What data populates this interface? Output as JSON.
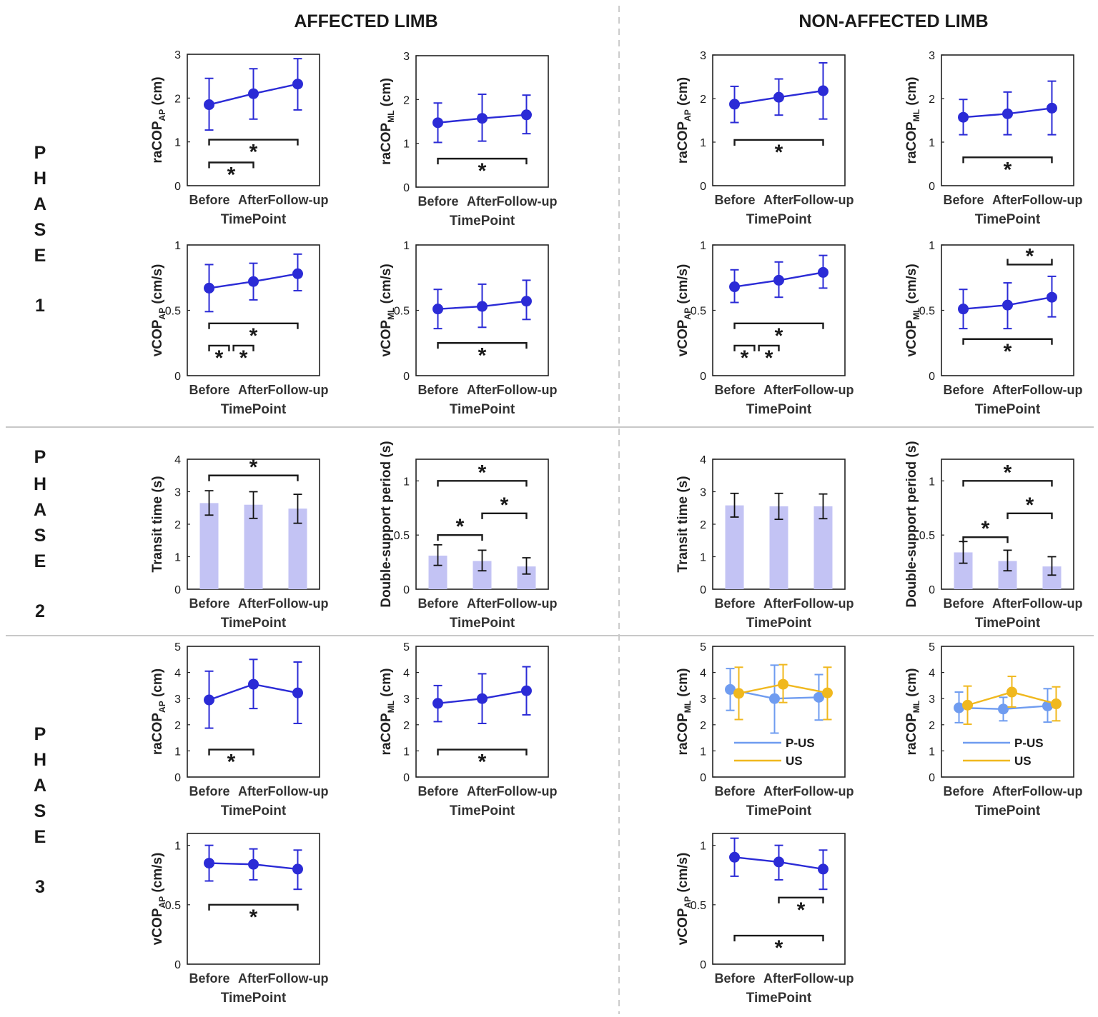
{
  "headers": {
    "affected": "AFFECTED LIMB",
    "non_affected": "NON-AFFECTED LIMB"
  },
  "phases": [
    {
      "word": [
        "P",
        "H",
        "A",
        "S",
        "E"
      ],
      "number": "1"
    },
    {
      "word": [
        "P",
        "H",
        "A",
        "S",
        "E"
      ],
      "number": "2"
    },
    {
      "word": [
        "P",
        "H",
        "A",
        "S",
        "E"
      ],
      "number": "3"
    }
  ],
  "colors": {
    "series": "#2b2bd6",
    "bar": "#c3c3f4",
    "p_us": "#6f9cf0",
    "us": "#f0b81e",
    "sig": "#1a1a1a",
    "divider": "#bbbbbb"
  },
  "chart_data": [
    {
      "id": "p1-aff-raap",
      "type": "line",
      "title": "",
      "ylabel": "raCOP",
      "ylabel_sub": "AP",
      "ylabel_unit": "(cm)",
      "xlabel": "TimePoint",
      "categories": [
        "Before",
        "After",
        "Follow-up"
      ],
      "ylim": [
        0,
        3
      ],
      "yticks": [
        "0",
        "1",
        "2",
        "3"
      ],
      "series": [
        {
          "name": "",
          "color": "series",
          "values": [
            1.85,
            2.1,
            2.32
          ],
          "err_low": [
            1.27,
            1.52,
            1.73
          ],
          "err_high": [
            2.45,
            2.67,
            2.9
          ]
        }
      ],
      "sig": [
        {
          "from": 0,
          "to": 2,
          "level": 1.05,
          "label": "*",
          "dir": "down",
          "star": "below"
        },
        {
          "from": 0,
          "to": 1,
          "level": 0.53,
          "label": "*",
          "dir": "down",
          "star": "below"
        }
      ]
    },
    {
      "id": "p1-aff-raml",
      "type": "line",
      "title": "",
      "ylabel": "raCOP",
      "ylabel_sub": "ML",
      "ylabel_unit": "(cm)",
      "xlabel": "TimePoint",
      "categories": [
        "Before",
        "After",
        "Follow-up"
      ],
      "ylim": [
        0,
        3
      ],
      "yticks": [
        "0",
        "1",
        "2",
        "3"
      ],
      "series": [
        {
          "name": "",
          "color": "series",
          "values": [
            1.47,
            1.57,
            1.65
          ],
          "err_low": [
            1.02,
            1.05,
            1.22
          ],
          "err_high": [
            1.92,
            2.12,
            2.1
          ]
        }
      ],
      "sig": [
        {
          "from": 0,
          "to": 2,
          "level": 0.65,
          "label": "*",
          "dir": "down",
          "star": "below"
        }
      ]
    },
    {
      "id": "p1-non-raap",
      "type": "line",
      "title": "",
      "ylabel": "raCOP",
      "ylabel_sub": "AP",
      "ylabel_unit": "(cm)",
      "xlabel": "TimePoint",
      "categories": [
        "Before",
        "After",
        "Follow-up"
      ],
      "ylim": [
        0,
        3
      ],
      "yticks": [
        "0",
        "1",
        "2",
        "3"
      ],
      "series": [
        {
          "name": "",
          "color": "series",
          "values": [
            1.87,
            2.03,
            2.18
          ],
          "err_low": [
            1.45,
            1.62,
            1.53
          ],
          "err_high": [
            2.28,
            2.45,
            2.82
          ]
        }
      ],
      "sig": [
        {
          "from": 0,
          "to": 2,
          "level": 1.05,
          "label": "*",
          "dir": "down",
          "star": "below"
        }
      ]
    },
    {
      "id": "p1-non-raml",
      "type": "line",
      "title": "",
      "ylabel": "raCOP",
      "ylabel_sub": "ML",
      "ylabel_unit": "(cm)",
      "xlabel": "TimePoint",
      "categories": [
        "Before",
        "After",
        "Follow-up"
      ],
      "ylim": [
        0,
        3
      ],
      "yticks": [
        "0",
        "1",
        "2",
        "3"
      ],
      "series": [
        {
          "name": "",
          "color": "series",
          "values": [
            1.57,
            1.65,
            1.78
          ],
          "err_low": [
            1.17,
            1.17,
            1.17
          ],
          "err_high": [
            1.98,
            2.15,
            2.4
          ]
        }
      ],
      "sig": [
        {
          "from": 0,
          "to": 2,
          "level": 0.65,
          "label": "*",
          "dir": "down",
          "star": "below"
        }
      ]
    },
    {
      "id": "p1-aff-vap",
      "type": "line",
      "title": "",
      "ylabel": "vCOP",
      "ylabel_sub": "AP",
      "ylabel_unit": "(cm/s)",
      "xlabel": "TimePoint",
      "categories": [
        "Before",
        "After",
        "Follow-up"
      ],
      "ylim": [
        0,
        1
      ],
      "yticks": [
        "0",
        "0.5",
        "1"
      ],
      "series": [
        {
          "name": "",
          "color": "series",
          "values": [
            0.67,
            0.72,
            0.78
          ],
          "err_low": [
            0.49,
            0.58,
            0.65
          ],
          "err_high": [
            0.85,
            0.86,
            0.93
          ]
        }
      ],
      "sig": [
        {
          "from": 0,
          "to": 2,
          "level": 0.4,
          "label": "*",
          "dir": "down",
          "star": "below"
        },
        {
          "from": 0,
          "to": 0.45,
          "level": 0.23,
          "label": "*",
          "dir": "down",
          "star": "below"
        },
        {
          "from": 0.55,
          "to": 1,
          "level": 0.23,
          "label": "*",
          "dir": "down",
          "star": "below"
        }
      ]
    },
    {
      "id": "p1-aff-vml",
      "type": "line",
      "title": "",
      "ylabel": "vCOP",
      "ylabel_sub": "ML",
      "ylabel_unit": "(cm/s)",
      "xlabel": "TimePoint",
      "categories": [
        "Before",
        "After",
        "Follow-up"
      ],
      "ylim": [
        0,
        1
      ],
      "yticks": [
        "0",
        "0.5",
        "1"
      ],
      "series": [
        {
          "name": "",
          "color": "series",
          "values": [
            0.51,
            0.53,
            0.57
          ],
          "err_low": [
            0.36,
            0.37,
            0.43
          ],
          "err_high": [
            0.66,
            0.7,
            0.73
          ]
        }
      ],
      "sig": [
        {
          "from": 0,
          "to": 2,
          "level": 0.25,
          "label": "*",
          "dir": "down",
          "star": "below"
        }
      ]
    },
    {
      "id": "p1-non-vap",
      "type": "line",
      "title": "",
      "ylabel": "vCOP",
      "ylabel_sub": "AP",
      "ylabel_unit": "(cm/s)",
      "xlabel": "TimePoint",
      "categories": [
        "Before",
        "After",
        "Follow-up"
      ],
      "ylim": [
        0,
        1
      ],
      "yticks": [
        "0",
        "0.5",
        "1"
      ],
      "series": [
        {
          "name": "",
          "color": "series",
          "values": [
            0.68,
            0.73,
            0.79
          ],
          "err_low": [
            0.56,
            0.6,
            0.67
          ],
          "err_high": [
            0.81,
            0.87,
            0.92
          ]
        }
      ],
      "sig": [
        {
          "from": 0,
          "to": 2,
          "level": 0.4,
          "label": "*",
          "dir": "down",
          "star": "below"
        },
        {
          "from": 0,
          "to": 0.45,
          "level": 0.23,
          "label": "*",
          "dir": "down",
          "star": "below"
        },
        {
          "from": 0.55,
          "to": 1,
          "level": 0.23,
          "label": "*",
          "dir": "down",
          "star": "below"
        }
      ]
    },
    {
      "id": "p1-non-vml",
      "type": "line",
      "title": "",
      "ylabel": "vCOP",
      "ylabel_sub": "ML",
      "ylabel_unit": "(cm/s)",
      "xlabel": "TimePoint",
      "categories": [
        "Before",
        "After",
        "Follow-up"
      ],
      "ylim": [
        0,
        1
      ],
      "yticks": [
        "0",
        "0.5",
        "1"
      ],
      "series": [
        {
          "name": "",
          "color": "series",
          "values": [
            0.51,
            0.54,
            0.6
          ],
          "err_low": [
            0.36,
            0.36,
            0.45
          ],
          "err_high": [
            0.66,
            0.71,
            0.76
          ]
        }
      ],
      "sig": [
        {
          "from": 1,
          "to": 2,
          "level": 0.85,
          "label": "*",
          "dir": "up",
          "star": "above"
        },
        {
          "from": 0,
          "to": 2,
          "level": 0.28,
          "label": "*",
          "dir": "down",
          "star": "below"
        }
      ]
    },
    {
      "id": "p2-aff-transit",
      "type": "bar",
      "title": "",
      "ylabel": "Transit time (s)",
      "ylabel_sub": "",
      "ylabel_unit": "",
      "xlabel": "TimePoint",
      "categories": [
        "Before",
        "After",
        "Follow-up"
      ],
      "ylim": [
        0,
        4
      ],
      "yticks": [
        "0",
        "1",
        "2",
        "3",
        "4"
      ],
      "series": [
        {
          "name": "",
          "color": "bar",
          "values": [
            2.65,
            2.6,
            2.48
          ],
          "err_low": [
            2.28,
            2.18,
            2.03
          ],
          "err_high": [
            3.03,
            3.0,
            2.92
          ]
        }
      ],
      "sig": [
        {
          "from": 0,
          "to": 2,
          "level": 3.5,
          "label": "*",
          "dir": "down",
          "star": "above"
        }
      ]
    },
    {
      "id": "p2-aff-dsp",
      "type": "bar",
      "title": "",
      "ylabel": "Double-support period (s)",
      "ylabel_sub": "",
      "ylabel_unit": "",
      "xlabel": "TimePoint",
      "categories": [
        "Before",
        "After",
        "Follow-up"
      ],
      "ylim": [
        0,
        1.2
      ],
      "yticks": [
        "0",
        "0.5",
        "1"
      ],
      "series": [
        {
          "name": "",
          "color": "bar",
          "values": [
            0.31,
            0.26,
            0.21
          ],
          "err_low": [
            0.22,
            0.17,
            0.14
          ],
          "err_high": [
            0.41,
            0.36,
            0.29
          ]
        }
      ],
      "sig": [
        {
          "from": 0,
          "to": 1,
          "level": 0.5,
          "label": "*",
          "dir": "down",
          "star": "above"
        },
        {
          "from": 1,
          "to": 2,
          "level": 0.7,
          "label": "*",
          "dir": "down",
          "star": "above"
        },
        {
          "from": 0,
          "to": 2,
          "level": 1.0,
          "label": "*",
          "dir": "down",
          "star": "above"
        }
      ]
    },
    {
      "id": "p2-non-transit",
      "type": "bar",
      "title": "",
      "ylabel": "Transit time (s)",
      "ylabel_sub": "",
      "ylabel_unit": "",
      "xlabel": "TimePoint",
      "categories": [
        "Before",
        "After",
        "Follow-up"
      ],
      "ylim": [
        0,
        4
      ],
      "yticks": [
        "0",
        "1",
        "2",
        "3",
        "4"
      ],
      "series": [
        {
          "name": "",
          "color": "bar",
          "values": [
            2.58,
            2.55,
            2.55
          ],
          "err_low": [
            2.22,
            2.15,
            2.17
          ],
          "err_high": [
            2.95,
            2.95,
            2.93
          ]
        }
      ],
      "sig": []
    },
    {
      "id": "p2-non-dsp",
      "type": "bar",
      "title": "",
      "ylabel": "Double-support period (s)",
      "ylabel_sub": "",
      "ylabel_unit": "",
      "xlabel": "TimePoint",
      "categories": [
        "Before",
        "After",
        "Follow-up"
      ],
      "ylim": [
        0,
        1.2
      ],
      "yticks": [
        "0",
        "0.5",
        "1"
      ],
      "series": [
        {
          "name": "",
          "color": "bar",
          "values": [
            0.34,
            0.26,
            0.21
          ],
          "err_low": [
            0.24,
            0.17,
            0.13
          ],
          "err_high": [
            0.44,
            0.36,
            0.3
          ]
        }
      ],
      "sig": [
        {
          "from": 0,
          "to": 1,
          "level": 0.48,
          "label": "*",
          "dir": "down",
          "star": "above"
        },
        {
          "from": 1,
          "to": 2,
          "level": 0.7,
          "label": "*",
          "dir": "down",
          "star": "above"
        },
        {
          "from": 0,
          "to": 2,
          "level": 1.0,
          "label": "*",
          "dir": "down",
          "star": "above"
        }
      ]
    },
    {
      "id": "p3-aff-raap",
      "type": "line",
      "title": "",
      "ylabel": "raCOP",
      "ylabel_sub": "AP",
      "ylabel_unit": "(cm)",
      "xlabel": "TimePoint",
      "categories": [
        "Before",
        "After",
        "Follow-up"
      ],
      "ylim": [
        0,
        5
      ],
      "yticks": [
        "0",
        "1",
        "2",
        "3",
        "4",
        "5"
      ],
      "series": [
        {
          "name": "",
          "color": "series",
          "values": [
            2.95,
            3.55,
            3.22
          ],
          "err_low": [
            1.87,
            2.62,
            2.05
          ],
          "err_high": [
            4.05,
            4.5,
            4.4
          ]
        }
      ],
      "sig": [
        {
          "from": 0,
          "to": 1,
          "level": 1.05,
          "label": "*",
          "dir": "down",
          "star": "below"
        }
      ]
    },
    {
      "id": "p3-aff-raml",
      "type": "line",
      "title": "",
      "ylabel": "raCOP",
      "ylabel_sub": "ML",
      "ylabel_unit": "(cm)",
      "xlabel": "TimePoint",
      "categories": [
        "Before",
        "After",
        "Follow-up"
      ],
      "ylim": [
        0,
        5
      ],
      "yticks": [
        "0",
        "1",
        "2",
        "3",
        "4",
        "5"
      ],
      "series": [
        {
          "name": "",
          "color": "series",
          "values": [
            2.82,
            3.0,
            3.3
          ],
          "err_low": [
            2.12,
            2.05,
            2.38
          ],
          "err_high": [
            3.5,
            3.95,
            4.22
          ]
        }
      ],
      "sig": [
        {
          "from": 0,
          "to": 2,
          "level": 1.05,
          "label": "*",
          "dir": "down",
          "star": "below"
        }
      ]
    },
    {
      "id": "p3-non-raml-a",
      "type": "line",
      "title": "",
      "ylabel": "raCOP",
      "ylabel_sub": "ML",
      "ylabel_unit": "(cm)",
      "xlabel": "TimePoint",
      "categories": [
        "Before",
        "After",
        "Follow-up"
      ],
      "ylim": [
        0,
        5
      ],
      "yticks": [
        "0",
        "1",
        "2",
        "3",
        "4",
        "5"
      ],
      "series": [
        {
          "name": "P-US",
          "color": "p_us",
          "values": [
            3.35,
            3.0,
            3.05
          ],
          "err_low": [
            2.55,
            1.68,
            2.18
          ],
          "err_high": [
            4.15,
            4.28,
            3.92
          ]
        },
        {
          "name": "US",
          "color": "us",
          "values": [
            3.2,
            3.55,
            3.22
          ],
          "err_low": [
            2.2,
            2.85,
            2.2
          ],
          "err_high": [
            4.2,
            4.3,
            4.2
          ]
        }
      ],
      "legend": "bottom-left",
      "sig": []
    },
    {
      "id": "p3-non-raml-b",
      "type": "line",
      "title": "",
      "ylabel": "raCOP",
      "ylabel_sub": "ML",
      "ylabel_unit": "(cm)",
      "xlabel": "TimePoint",
      "categories": [
        "Before",
        "After",
        "Follow-up"
      ],
      "ylim": [
        0,
        5
      ],
      "yticks": [
        "0",
        "1",
        "2",
        "3",
        "4",
        "5"
      ],
      "series": [
        {
          "name": "P-US",
          "color": "p_us",
          "values": [
            2.65,
            2.6,
            2.72
          ],
          "err_low": [
            2.08,
            2.15,
            2.1
          ],
          "err_high": [
            3.25,
            3.05,
            3.38
          ]
        },
        {
          "name": "US",
          "color": "us",
          "values": [
            2.75,
            3.25,
            2.8
          ],
          "err_low": [
            2.02,
            2.68,
            2.15
          ],
          "err_high": [
            3.48,
            3.85,
            3.45
          ]
        }
      ],
      "legend": "bottom-left",
      "sig": []
    },
    {
      "id": "p3-aff-vap",
      "type": "line",
      "title": "",
      "ylabel": "vCOP",
      "ylabel_sub": "AP",
      "ylabel_unit": "(cm/s)",
      "xlabel": "TimePoint",
      "categories": [
        "Before",
        "After",
        "Follow-up"
      ],
      "ylim": [
        0,
        1.1
      ],
      "yticks": [
        "0",
        "0.5",
        "1"
      ],
      "series": [
        {
          "name": "",
          "color": "series",
          "values": [
            0.85,
            0.84,
            0.8
          ],
          "err_low": [
            0.7,
            0.71,
            0.63
          ],
          "err_high": [
            1.0,
            0.97,
            0.96
          ]
        }
      ],
      "sig": [
        {
          "from": 0,
          "to": 2,
          "level": 0.5,
          "label": "*",
          "dir": "down",
          "star": "below"
        }
      ]
    },
    {
      "id": "p3-non-vap",
      "type": "line",
      "title": "",
      "ylabel": "vCOP",
      "ylabel_sub": "AP",
      "ylabel_unit": "(cm/s)",
      "xlabel": "TimePoint",
      "categories": [
        "Before",
        "After",
        "Follow-up"
      ],
      "ylim": [
        0,
        1.1
      ],
      "yticks": [
        "0",
        "0.5",
        "1"
      ],
      "series": [
        {
          "name": "",
          "color": "series",
          "values": [
            0.9,
            0.86,
            0.8
          ],
          "err_low": [
            0.74,
            0.71,
            0.63
          ],
          "err_high": [
            1.06,
            1.0,
            0.96
          ]
        }
      ],
      "sig": [
        {
          "from": 1,
          "to": 2,
          "level": 0.56,
          "label": "*",
          "dir": "down",
          "star": "below"
        },
        {
          "from": 0,
          "to": 2,
          "level": 0.24,
          "label": "*",
          "dir": "down",
          "star": "below"
        }
      ]
    }
  ]
}
